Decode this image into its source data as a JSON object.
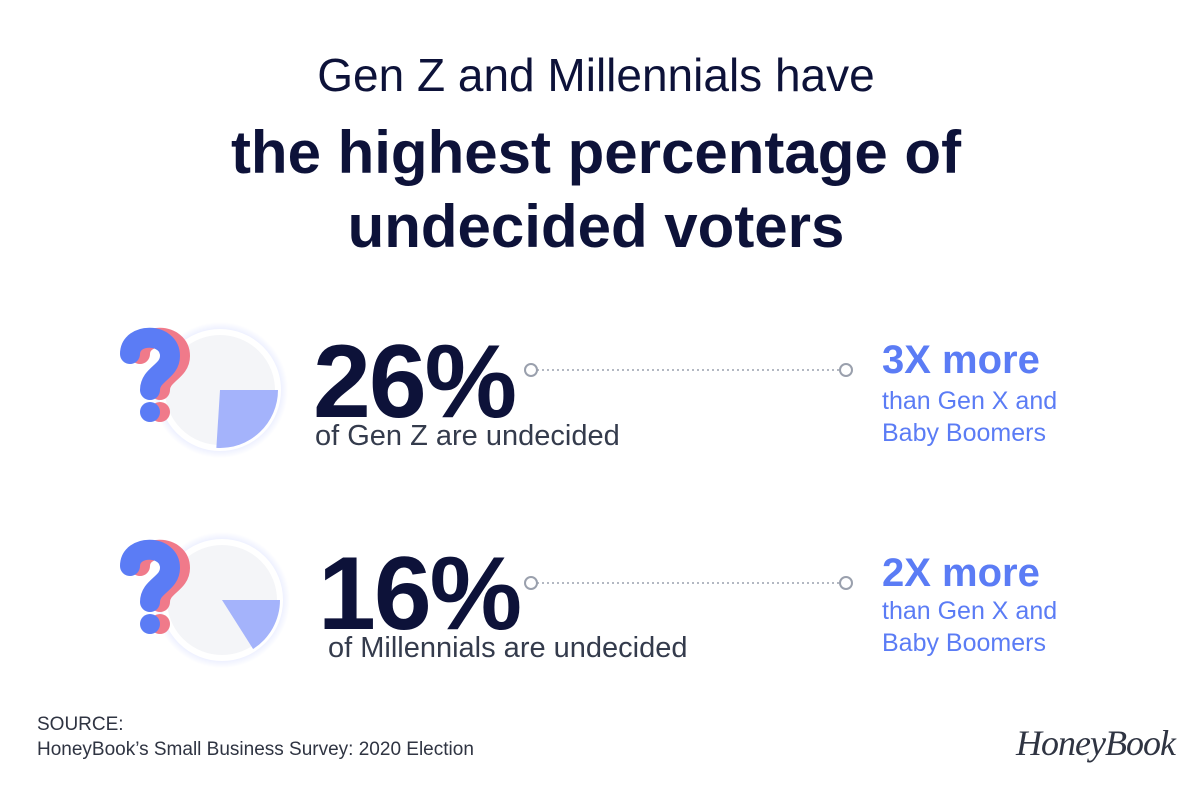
{
  "header": {
    "title": "Gen Z and Millennials have",
    "emphasis": "the highest percentage of undecided voters"
  },
  "rows": [
    {
      "value": 26,
      "value_label": "26%",
      "caption": "of Gen Z are undecided",
      "comparison": "3X more",
      "comparison_detail": "than Gen X and Baby Boomers"
    },
    {
      "value": 16,
      "value_label": "16%",
      "caption": "of Millennials are undecided",
      "comparison": "2X more",
      "comparison_detail": "than Gen X and Baby Boomers"
    }
  ],
  "source": {
    "label": "SOURCE:",
    "text": "HoneyBook’s Small Business Survey: 2020 Election"
  },
  "logo": "HoneyBook"
}
